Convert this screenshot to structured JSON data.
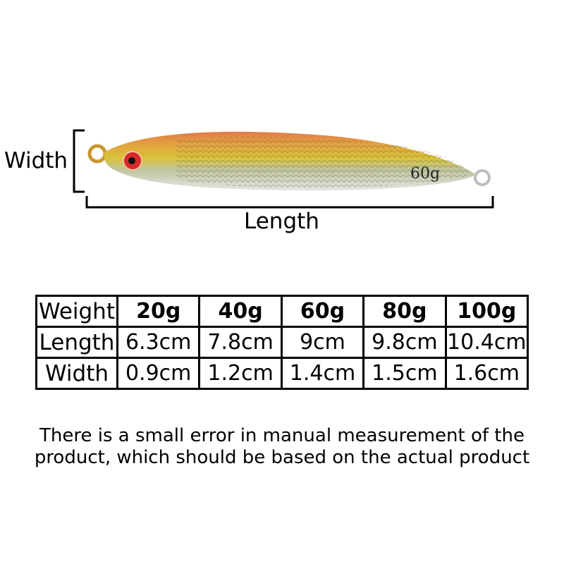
{
  "diagram": {
    "width_label": "Width",
    "length_label": "Length",
    "lure_marking": "60g",
    "lure_colors": {
      "back": "#e07a4a",
      "body": "#d9c43a",
      "belly": "#d8d8d8",
      "eye": "#d62a2a"
    }
  },
  "table": {
    "rows": [
      {
        "label": "Weight",
        "values": [
          "20g",
          "40g",
          "60g",
          "80g",
          "100g"
        ]
      },
      {
        "label": "Length",
        "values": [
          "6.3cm",
          "7.8cm",
          "9cm",
          "9.8cm",
          "10.4cm"
        ]
      },
      {
        "label": "Width",
        "values": [
          "0.9cm",
          "1.2cm",
          "1.4cm",
          "1.5cm",
          "1.6cm"
        ]
      }
    ]
  },
  "note": {
    "line1": "There is a small error in manual measurement of the",
    "line2": "product, which should be based on the actual product"
  }
}
